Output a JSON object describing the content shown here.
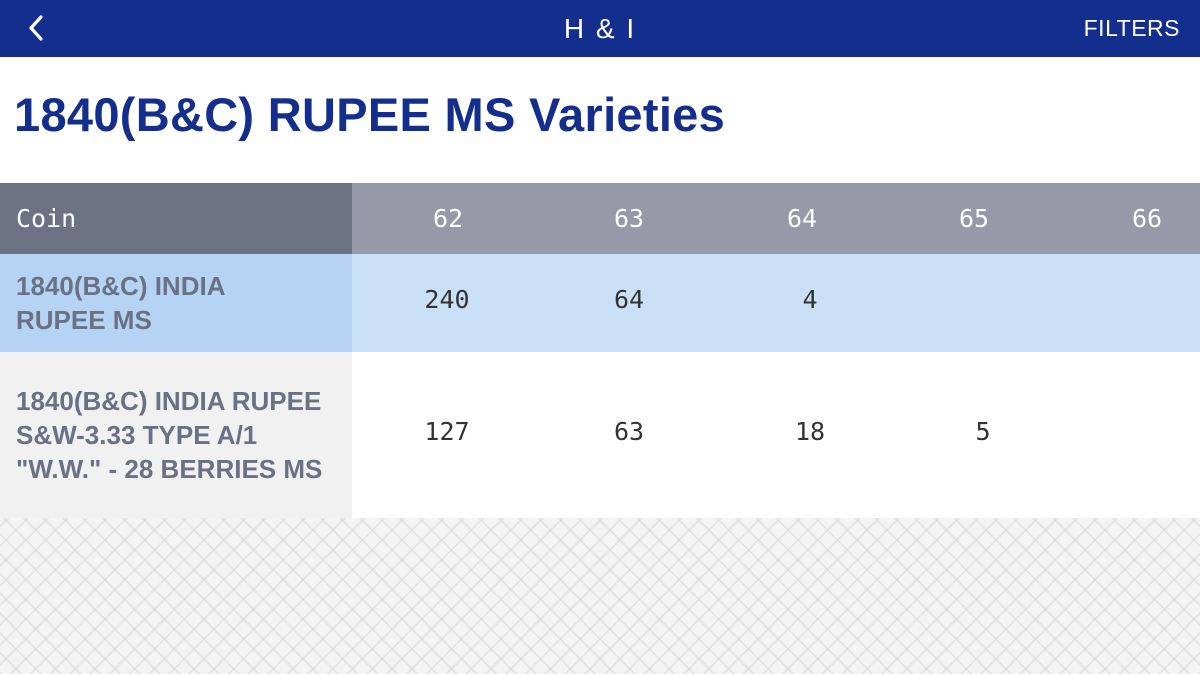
{
  "navbar": {
    "title": "H & I",
    "filters_label": "FILTERS",
    "back_icon": "chevron-left-icon",
    "background_color": "#132e8c"
  },
  "page": {
    "title": "1840(B&C) RUPEE MS Varieties"
  },
  "table": {
    "headers": {
      "coin": "Coin",
      "grades": [
        "62",
        "63",
        "64",
        "65",
        "66"
      ]
    },
    "rows": [
      {
        "name": "1840(B&C) INDIA RUPEE MS",
        "values": [
          "240",
          "64",
          "4",
          "",
          ""
        ]
      },
      {
        "name": "1840(B&C) INDIA RUPEE S&W-3.33 TYPE A/1 \"W.W.\" - 28 BERRIES MS",
        "values": [
          "127",
          "63",
          "18",
          "5",
          ""
        ]
      }
    ]
  }
}
